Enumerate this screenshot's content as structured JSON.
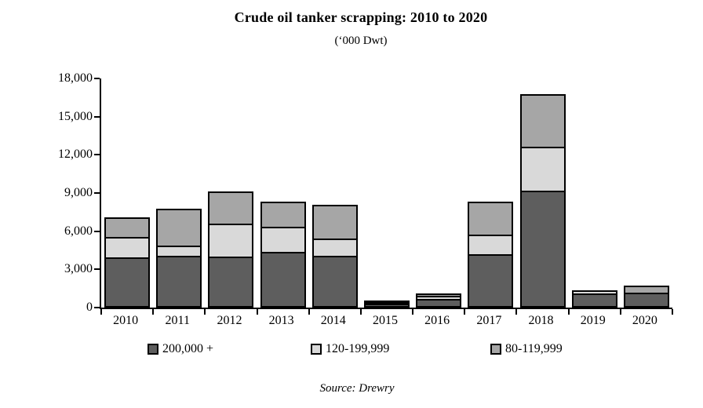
{
  "page": {
    "title": "Crude oil tanker scrapping: 2010 to 2020",
    "subtitle": "(‘000 Dwt)",
    "source": "Source: Drewry"
  },
  "chart_data": {
    "type": "bar",
    "stacked": true,
    "title": "Crude oil tanker scrapping: 2010 to 2020",
    "subtitle": "('000 Dwt)",
    "units": "'000 Dwt",
    "categories": [
      "2010",
      "2011",
      "2012",
      "2013",
      "2014",
      "2015",
      "2016",
      "2017",
      "2018",
      "2019",
      "2020"
    ],
    "series": [
      {
        "name": "200,000 +",
        "color": "#5E5E5E",
        "values": [
          3950,
          4050,
          4000,
          4400,
          4100,
          300,
          650,
          4200,
          9200,
          1100,
          1200
        ]
      },
      {
        "name": "120-199,999",
        "color": "#D9D9D9",
        "values": [
          1700,
          950,
          2700,
          2100,
          1450,
          150,
          400,
          1650,
          3550,
          350,
          0
        ]
      },
      {
        "name": "80-119,999",
        "color": "#A6A6A6",
        "values": [
          1700,
          3000,
          2650,
          2100,
          2750,
          150,
          300,
          2750,
          4250,
          0,
          650
        ]
      }
    ],
    "totals": [
      7350,
      8000,
      9350,
      8600,
      8300,
      600,
      1350,
      8600,
      17000,
      1450,
      1850
    ],
    "xlabel": "",
    "ylabel": "",
    "ylim": [
      0,
      18000
    ],
    "yticks": [
      0,
      3000,
      6000,
      9000,
      12000,
      15000,
      18000
    ],
    "ytick_labels": [
      "0",
      "3,000",
      "6,000",
      "9,000",
      "12,000",
      "15,000",
      "18,000"
    ],
    "grid": false,
    "legend_position": "bottom",
    "bar_border_color": "#000000",
    "source": "Source: Drewry"
  }
}
